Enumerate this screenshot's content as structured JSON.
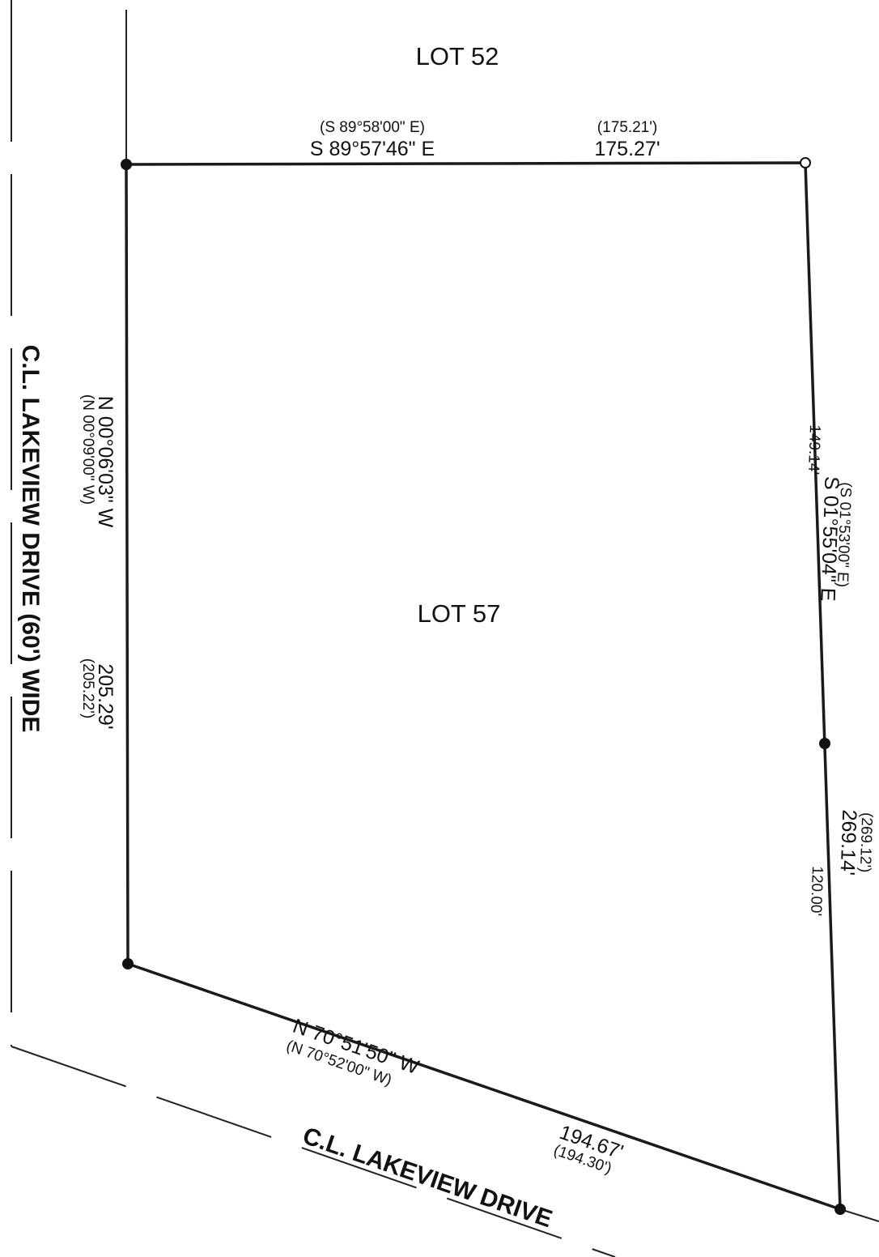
{
  "lots": {
    "north": "LOT 52",
    "subject": "LOT 57"
  },
  "north_line": {
    "record_bearing": "(S 89°58'00\" E)",
    "bearing": "S 89°57'46\" E",
    "record_distance": "(175.21')",
    "distance": "175.27'"
  },
  "west_line": {
    "bearing": "N 00°06'03\" W",
    "record_bearing": "(N 00°09'00\" W)",
    "distance": "205.29'",
    "record_distance": "(205.22')"
  },
  "east_line": {
    "segment_north": "149.14'",
    "bearing": "S 01°55'04\" E",
    "record_bearing": "(S 01°53'00\" E)",
    "distance": "269.14'",
    "record_distance": "(269.12')",
    "segment_south": "120.00'"
  },
  "south_line": {
    "bearing": "N 70°51'50\" W",
    "record_bearing": "(N 70°52'00\" W)",
    "distance": "194.67'",
    "record_distance": "(194.30')"
  },
  "roads": {
    "west": "C.L. LAKEVIEW DRIVE (60') WIDE",
    "south": "C.L. LAKEVIEW DRIVE"
  },
  "colors": {
    "line": "#1a1a1a",
    "text": "#111111",
    "background": "#ffffff"
  }
}
